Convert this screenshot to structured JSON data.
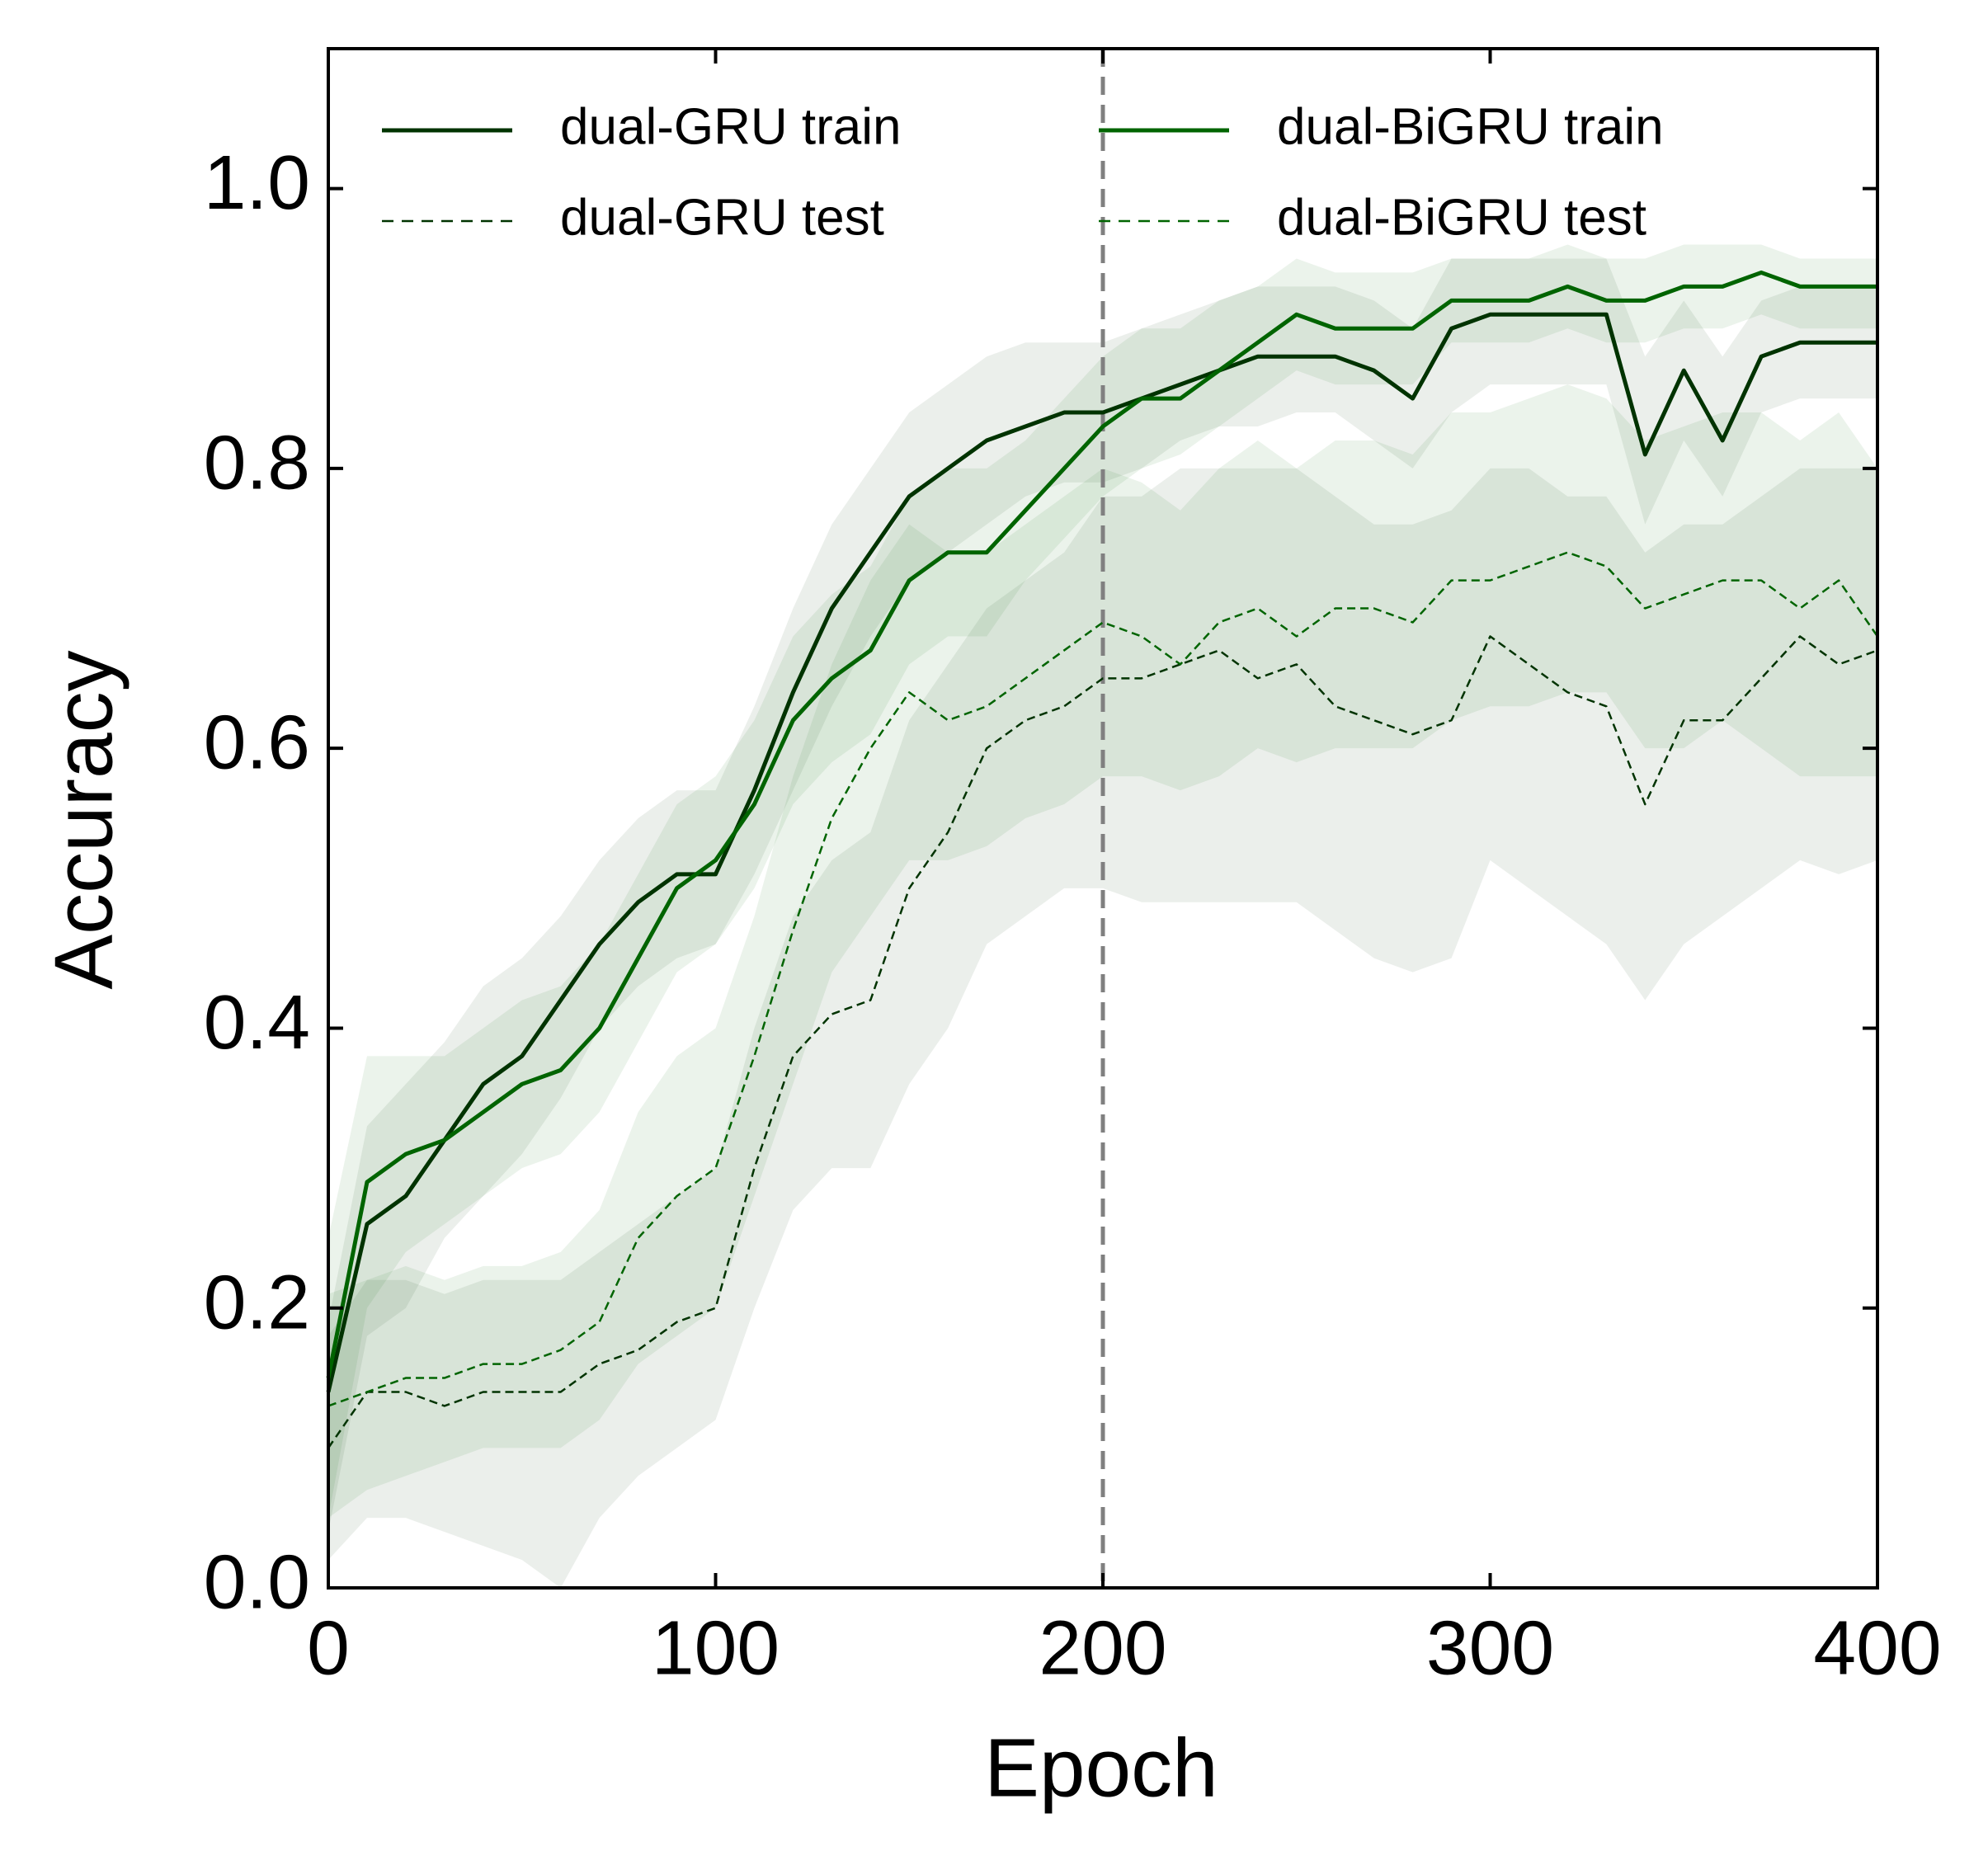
{
  "chart_data": {
    "type": "line",
    "xlabel": "Epoch",
    "ylabel": "Accuracy",
    "xlim": [
      0,
      400
    ],
    "ylim": [
      0,
      1.1
    ],
    "xticks": [
      0,
      100,
      200,
      300,
      400
    ],
    "yticks": [
      {
        "value": 0,
        "label": "0.0"
      },
      0.2,
      0.4,
      0.6,
      0.8,
      {
        "value": 1,
        "label": "1.0"
      }
    ],
    "vline_x": 200,
    "legend": "upper left",
    "x": [
      0,
      10,
      20,
      30,
      40,
      50,
      60,
      70,
      80,
      90,
      100,
      110,
      120,
      130,
      140,
      150,
      160,
      170,
      180,
      190,
      200,
      210,
      220,
      230,
      240,
      250,
      260,
      270,
      280,
      290,
      300,
      310,
      320,
      330,
      340,
      350,
      360,
      370,
      380,
      390,
      400
    ],
    "series": [
      {
        "name": "dual-GRU train",
        "color": "#003300",
        "dash": false,
        "values": [
          0.14,
          0.26,
          0.28,
          0.32,
          0.36,
          0.38,
          0.42,
          0.46,
          0.49,
          0.51,
          0.51,
          0.57,
          0.64,
          0.7,
          0.74,
          0.78,
          0.8,
          0.82,
          0.83,
          0.84,
          0.84,
          0.85,
          0.86,
          0.87,
          0.88,
          0.88,
          0.88,
          0.87,
          0.85,
          0.9,
          0.91,
          0.91,
          0.91,
          0.91,
          0.81,
          0.87,
          0.82,
          0.88,
          0.89,
          0.89,
          0.89
        ],
        "lower": [
          0.04,
          0.18,
          0.2,
          0.25,
          0.28,
          0.31,
          0.35,
          0.4,
          0.43,
          0.45,
          0.46,
          0.51,
          0.57,
          0.63,
          0.68,
          0.72,
          0.74,
          0.76,
          0.78,
          0.79,
          0.79,
          0.8,
          0.82,
          0.83,
          0.83,
          0.84,
          0.84,
          0.82,
          0.8,
          0.84,
          0.86,
          0.86,
          0.86,
          0.86,
          0.76,
          0.82,
          0.78,
          0.84,
          0.85,
          0.85,
          0.85
        ],
        "upper": [
          0.19,
          0.33,
          0.36,
          0.39,
          0.43,
          0.45,
          0.48,
          0.52,
          0.55,
          0.57,
          0.57,
          0.63,
          0.7,
          0.76,
          0.8,
          0.84,
          0.86,
          0.88,
          0.89,
          0.89,
          0.89,
          0.9,
          0.91,
          0.92,
          0.93,
          0.93,
          0.93,
          0.92,
          0.9,
          0.95,
          0.95,
          0.95,
          0.95,
          0.95,
          0.88,
          0.92,
          0.88,
          0.92,
          0.93,
          0.93,
          0.93
        ]
      },
      {
        "name": "dual-GRU test",
        "color": "#003300",
        "dash": true,
        "values": [
          0.1,
          0.14,
          0.14,
          0.13,
          0.14,
          0.14,
          0.14,
          0.16,
          0.17,
          0.19,
          0.2,
          0.3,
          0.38,
          0.41,
          0.42,
          0.5,
          0.54,
          0.6,
          0.62,
          0.63,
          0.65,
          0.65,
          0.66,
          0.67,
          0.65,
          0.66,
          0.63,
          0.62,
          0.61,
          0.62,
          0.68,
          0.66,
          0.64,
          0.63,
          0.56,
          0.62,
          0.62,
          0.65,
          0.68,
          0.66,
          0.67
        ],
        "lower": [
          0.02,
          0.05,
          0.05,
          0.04,
          0.03,
          0.02,
          0.0,
          0.05,
          0.08,
          0.1,
          0.12,
          0.2,
          0.27,
          0.3,
          0.3,
          0.36,
          0.4,
          0.46,
          0.48,
          0.5,
          0.5,
          0.49,
          0.49,
          0.49,
          0.49,
          0.49,
          0.47,
          0.45,
          0.44,
          0.45,
          0.52,
          0.5,
          0.48,
          0.46,
          0.42,
          0.46,
          0.48,
          0.5,
          0.52,
          0.51,
          0.52
        ],
        "upper": [
          0.18,
          0.22,
          0.22,
          0.21,
          0.22,
          0.22,
          0.22,
          0.24,
          0.26,
          0.28,
          0.3,
          0.4,
          0.48,
          0.52,
          0.54,
          0.62,
          0.66,
          0.7,
          0.72,
          0.74,
          0.78,
          0.78,
          0.8,
          0.8,
          0.8,
          0.8,
          0.78,
          0.76,
          0.76,
          0.77,
          0.8,
          0.8,
          0.78,
          0.78,
          0.74,
          0.76,
          0.76,
          0.78,
          0.8,
          0.8,
          0.8
        ]
      },
      {
        "name": "dual-BiGRU train",
        "color": "#006400",
        "dash": false,
        "values": [
          0.15,
          0.29,
          0.31,
          0.32,
          0.34,
          0.36,
          0.37,
          0.4,
          0.45,
          0.5,
          0.52,
          0.56,
          0.62,
          0.65,
          0.67,
          0.72,
          0.74,
          0.74,
          0.77,
          0.8,
          0.83,
          0.85,
          0.85,
          0.87,
          0.89,
          0.91,
          0.9,
          0.9,
          0.9,
          0.92,
          0.92,
          0.92,
          0.93,
          0.92,
          0.92,
          0.93,
          0.93,
          0.94,
          0.93,
          0.93,
          0.93
        ],
        "lower": [
          0.05,
          0.2,
          0.24,
          0.26,
          0.28,
          0.3,
          0.31,
          0.34,
          0.39,
          0.44,
          0.46,
          0.5,
          0.56,
          0.59,
          0.61,
          0.66,
          0.68,
          0.68,
          0.72,
          0.75,
          0.78,
          0.8,
          0.81,
          0.83,
          0.85,
          0.87,
          0.86,
          0.86,
          0.86,
          0.89,
          0.89,
          0.89,
          0.9,
          0.89,
          0.89,
          0.9,
          0.9,
          0.91,
          0.9,
          0.9,
          0.9
        ],
        "upper": [
          0.25,
          0.38,
          0.38,
          0.38,
          0.4,
          0.42,
          0.43,
          0.46,
          0.51,
          0.56,
          0.58,
          0.62,
          0.68,
          0.71,
          0.73,
          0.78,
          0.8,
          0.8,
          0.82,
          0.85,
          0.88,
          0.9,
          0.9,
          0.92,
          0.93,
          0.95,
          0.94,
          0.94,
          0.94,
          0.95,
          0.95,
          0.95,
          0.96,
          0.95,
          0.95,
          0.96,
          0.96,
          0.96,
          0.95,
          0.95,
          0.95
        ]
      },
      {
        "name": "dual-BiGRU test",
        "color": "#006400",
        "dash": true,
        "values": [
          0.13,
          0.14,
          0.15,
          0.15,
          0.16,
          0.16,
          0.17,
          0.19,
          0.25,
          0.28,
          0.3,
          0.38,
          0.47,
          0.55,
          0.6,
          0.64,
          0.62,
          0.63,
          0.65,
          0.67,
          0.69,
          0.68,
          0.66,
          0.69,
          0.7,
          0.68,
          0.7,
          0.7,
          0.69,
          0.72,
          0.72,
          0.73,
          0.74,
          0.73,
          0.7,
          0.71,
          0.72,
          0.72,
          0.7,
          0.72,
          0.68
        ],
        "lower": [
          0.05,
          0.07,
          0.08,
          0.09,
          0.1,
          0.1,
          0.1,
          0.12,
          0.16,
          0.18,
          0.2,
          0.28,
          0.36,
          0.44,
          0.48,
          0.52,
          0.52,
          0.53,
          0.55,
          0.56,
          0.58,
          0.58,
          0.57,
          0.58,
          0.6,
          0.59,
          0.6,
          0.6,
          0.6,
          0.62,
          0.63,
          0.63,
          0.64,
          0.64,
          0.6,
          0.6,
          0.62,
          0.6,
          0.58,
          0.58,
          0.58
        ],
        "upper": [
          0.21,
          0.22,
          0.23,
          0.22,
          0.23,
          0.23,
          0.24,
          0.27,
          0.34,
          0.38,
          0.4,
          0.48,
          0.58,
          0.66,
          0.72,
          0.76,
          0.74,
          0.74,
          0.76,
          0.78,
          0.8,
          0.79,
          0.77,
          0.8,
          0.82,
          0.8,
          0.82,
          0.82,
          0.81,
          0.84,
          0.84,
          0.85,
          0.86,
          0.85,
          0.82,
          0.83,
          0.84,
          0.84,
          0.82,
          0.84,
          0.8
        ]
      }
    ]
  }
}
